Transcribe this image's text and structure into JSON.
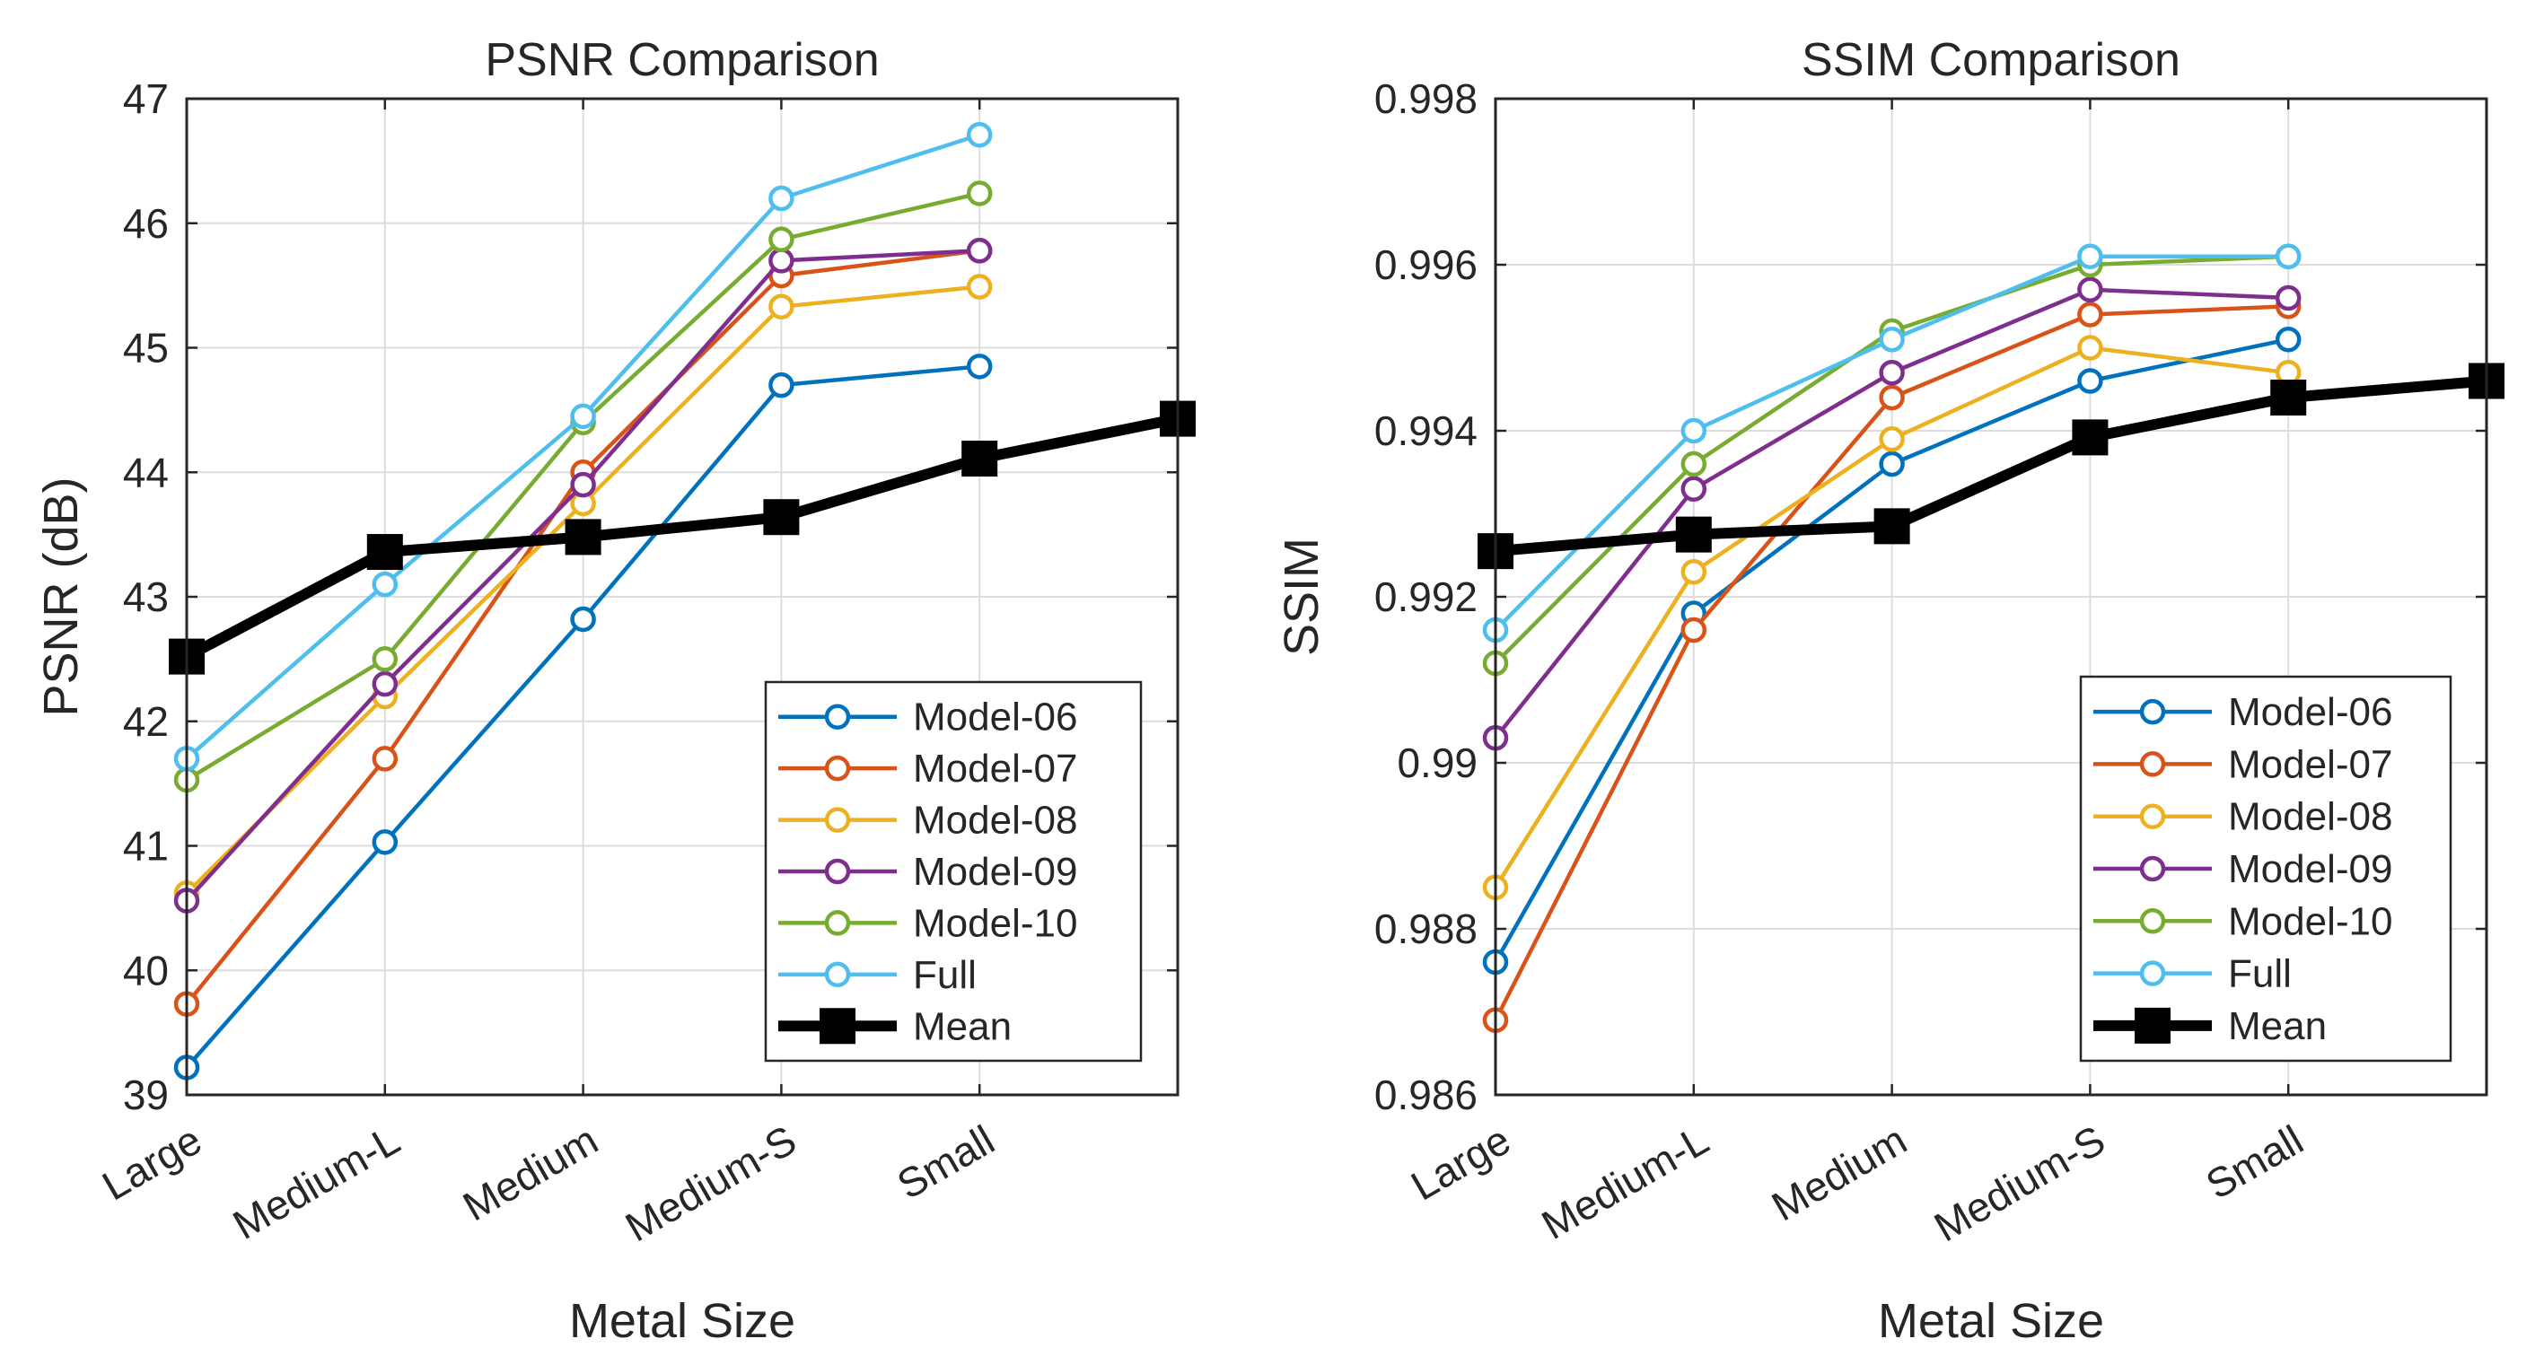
{
  "chart_data": [
    {
      "type": "line",
      "title": "PSNR Comparison",
      "xlabel": "Metal Size",
      "ylabel": "PSNR (dB)",
      "categories": [
        "Large",
        "Medium-L",
        "Medium",
        "Medium-S",
        "Small"
      ],
      "xlim": [
        1,
        6
      ],
      "ylim": [
        39,
        47
      ],
      "yticks": [
        "39",
        "40",
        "41",
        "42",
        "43",
        "44",
        "45",
        "46",
        "47"
      ],
      "grid": true,
      "legend_position": "bottom-right",
      "series": [
        {
          "name": "Model-06",
          "color": "#0072BD",
          "x": [
            1,
            2,
            3,
            4,
            5
          ],
          "values": [
            39.22,
            41.03,
            42.82,
            44.7,
            44.85
          ]
        },
        {
          "name": "Model-07",
          "color": "#D95319",
          "x": [
            1,
            2,
            3,
            4,
            5
          ],
          "values": [
            39.73,
            41.7,
            44.0,
            45.58,
            45.78
          ]
        },
        {
          "name": "Model-08",
          "color": "#EDB120",
          "x": [
            1,
            2,
            3,
            4,
            5
          ],
          "values": [
            40.62,
            42.2,
            43.75,
            45.33,
            45.49
          ]
        },
        {
          "name": "Model-09",
          "color": "#7E2F8E",
          "x": [
            1,
            2,
            3,
            4,
            5
          ],
          "values": [
            40.56,
            42.3,
            43.9,
            45.7,
            45.78
          ]
        },
        {
          "name": "Model-10",
          "color": "#77AC30",
          "x": [
            1,
            2,
            3,
            4,
            5
          ],
          "values": [
            41.53,
            42.5,
            44.4,
            45.87,
            46.24
          ]
        },
        {
          "name": "Full",
          "color": "#4DBEEE",
          "x": [
            1,
            2,
            3,
            4,
            5
          ],
          "values": [
            41.7,
            43.1,
            44.45,
            46.2,
            46.71
          ]
        },
        {
          "name": "Mean",
          "color": "#000000",
          "x": [
            1,
            2,
            3,
            4,
            5,
            6
          ],
          "values": [
            42.52,
            43.36,
            43.48,
            43.64,
            44.11,
            44.43
          ]
        }
      ]
    },
    {
      "type": "line",
      "title": "SSIM Comparison",
      "xlabel": "Metal Size",
      "ylabel": "SSIM",
      "categories": [
        "Large",
        "Medium-L",
        "Medium",
        "Medium-S",
        "Small"
      ],
      "xlim": [
        1,
        6
      ],
      "ylim": [
        0.986,
        0.998
      ],
      "yticks": [
        "0.986",
        "0.988",
        "0.99",
        "0.992",
        "0.994",
        "0.996",
        "0.998"
      ],
      "grid": true,
      "legend_position": "bottom-right",
      "series": [
        {
          "name": "Model-06",
          "color": "#0072BD",
          "x": [
            1,
            2,
            3,
            4,
            5
          ],
          "values": [
            0.9876,
            0.9918,
            0.9936,
            0.9946,
            0.9951
          ]
        },
        {
          "name": "Model-07",
          "color": "#D95319",
          "x": [
            1,
            2,
            3,
            4,
            5
          ],
          "values": [
            0.9869,
            0.9916,
            0.9944,
            0.9954,
            0.9955
          ]
        },
        {
          "name": "Model-08",
          "color": "#EDB120",
          "x": [
            1,
            2,
            3,
            4,
            5
          ],
          "values": [
            0.9885,
            0.9923,
            0.9939,
            0.995,
            0.9947
          ]
        },
        {
          "name": "Model-09",
          "color": "#7E2F8E",
          "x": [
            1,
            2,
            3,
            4,
            5
          ],
          "values": [
            0.9903,
            0.9933,
            0.9947,
            0.9957,
            0.9956
          ]
        },
        {
          "name": "Model-10",
          "color": "#77AC30",
          "x": [
            1,
            2,
            3,
            4,
            5
          ],
          "values": [
            0.9912,
            0.9936,
            0.9952,
            0.996,
            0.9961
          ]
        },
        {
          "name": "Full",
          "color": "#4DBEEE",
          "x": [
            1,
            2,
            3,
            4,
            5
          ],
          "values": [
            0.9916,
            0.994,
            0.9951,
            0.9961,
            0.9961
          ]
        },
        {
          "name": "Mean",
          "color": "#000000",
          "x": [
            1,
            2,
            3,
            4,
            5,
            6
          ],
          "values": [
            0.99255,
            0.99275,
            0.99285,
            0.99392,
            0.9944,
            0.9946
          ]
        }
      ]
    }
  ]
}
